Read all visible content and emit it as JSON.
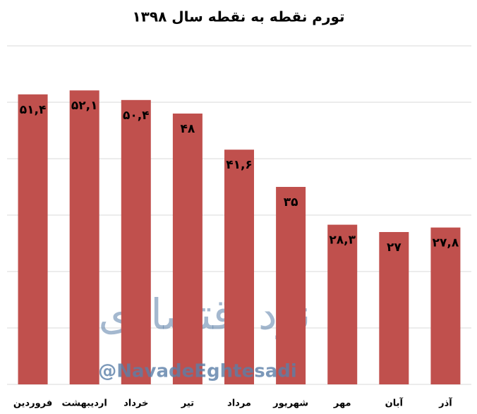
{
  "chart_data": {
    "type": "bar",
    "title": "تورم نقطه به نقطه سال ۱۳۹۸",
    "categories": [
      "فروردین",
      "اردیبهشت",
      "خرداد",
      "تیر",
      "مرداد",
      "شهریور",
      "مهر",
      "آبان",
      "آذر"
    ],
    "values": [
      51.4,
      52.1,
      50.4,
      48,
      41.6,
      35,
      28.3,
      27,
      27.8
    ],
    "value_labels": [
      "۵۱,۴",
      "۵۲,۱",
      "۵۰,۴",
      "۴۸",
      "۴۱,۶",
      "۳۵",
      "۲۸,۳",
      "۲۷",
      "۲۷,۸"
    ],
    "color": "#c0504d",
    "ylim": [
      0,
      60
    ],
    "yticks": [
      0,
      10,
      20,
      30,
      40,
      50,
      60
    ],
    "grid": true,
    "watermark": {
      "logo_text": "نود اقتصادی",
      "handle": "@NavadeEghtesadi"
    }
  }
}
